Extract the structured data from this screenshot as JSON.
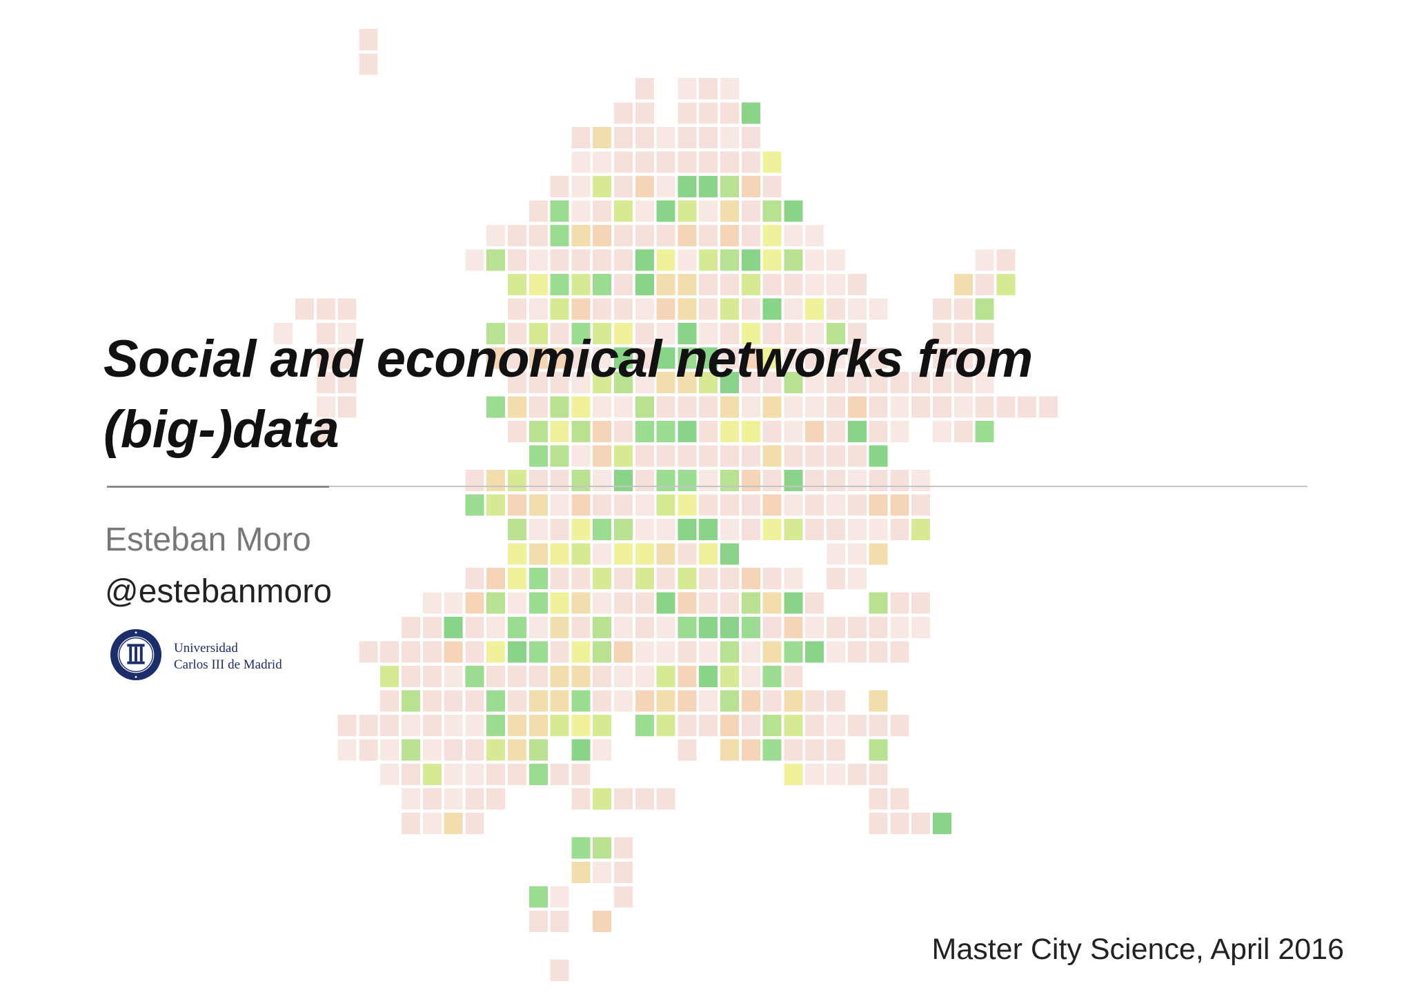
{
  "slide": {
    "title_line_1": "Social and economical networks from",
    "title_line_2": "(big-)data",
    "author": "Esteban Moro",
    "handle": "@estebanmoro",
    "university_line_1": "Universidad",
    "university_line_2": "Carlos III de Madrid",
    "seal_text": "UNIVERSIDAD CARLOS III DE MADRID",
    "footer": "Master City Science, April 2016"
  },
  "colors": {
    "pale_pink": "#f4d9d4",
    "light_pink": "#f7e3df",
    "peach": "#f3cba9",
    "tan": "#efd79a",
    "yellow": "#ecef85",
    "lime": "#cde57c",
    "light_green": "#a9dc7a",
    "green": "#86d47a",
    "dark_green": "#6fcb6f",
    "rule": "#c4c4c4",
    "logo_blue": "#1b2d6b"
  }
}
